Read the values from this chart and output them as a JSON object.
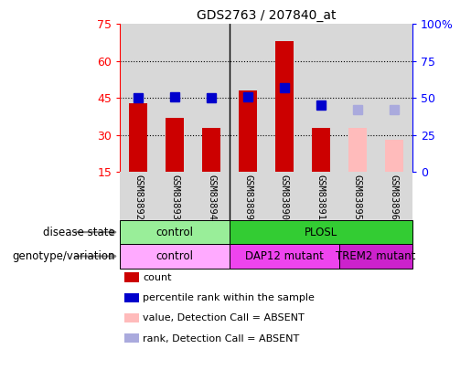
{
  "title": "GDS2763 / 207840_at",
  "samples": [
    "GSM83892",
    "GSM83893",
    "GSM83894",
    "GSM83889",
    "GSM83890",
    "GSM83891",
    "GSM83895",
    "GSM83896"
  ],
  "count_values": [
    43,
    37,
    33,
    48,
    68,
    33,
    33,
    28
  ],
  "count_absent": [
    false,
    false,
    false,
    false,
    false,
    false,
    true,
    true
  ],
  "percentile_values": [
    50,
    51,
    50,
    51,
    57,
    45,
    42,
    42
  ],
  "percentile_absent": [
    false,
    false,
    false,
    false,
    false,
    false,
    true,
    true
  ],
  "ylim_left": [
    15,
    75
  ],
  "ylim_right": [
    0,
    100
  ],
  "yticks_left": [
    15,
    30,
    45,
    60,
    75
  ],
  "yticks_right": [
    0,
    25,
    50,
    75,
    100
  ],
  "ytick_labels_right": [
    "0",
    "25",
    "50",
    "75",
    "100%"
  ],
  "color_count": "#cc0000",
  "color_count_absent": "#ffbbbb",
  "color_percentile": "#0000cc",
  "color_percentile_absent": "#aaaadd",
  "disease_state_groups": [
    {
      "label": "control",
      "start": 0,
      "end": 3,
      "color": "#99ee99"
    },
    {
      "label": "PLOSL",
      "start": 3,
      "end": 8,
      "color": "#33cc33"
    }
  ],
  "genotype_groups": [
    {
      "label": "control",
      "start": 0,
      "end": 3,
      "color": "#ffaaff"
    },
    {
      "label": "DAP12 mutant",
      "start": 3,
      "end": 6,
      "color": "#ee44ee"
    },
    {
      "label": "TREM2 mutant",
      "start": 6,
      "end": 8,
      "color": "#cc22cc"
    }
  ],
  "label_disease_state": "disease state",
  "label_genotype": "genotype/variation",
  "legend_items": [
    {
      "label": "count",
      "color": "#cc0000"
    },
    {
      "label": "percentile rank within the sample",
      "color": "#0000cc"
    },
    {
      "label": "value, Detection Call = ABSENT",
      "color": "#ffbbbb"
    },
    {
      "label": "rank, Detection Call = ABSENT",
      "color": "#aaaadd"
    }
  ],
  "bar_width": 0.5,
  "percentile_marker_size": 7,
  "group_separator": 2.5,
  "col_bg_color": "#d8d8d8",
  "plot_bg_color": "#ffffff"
}
